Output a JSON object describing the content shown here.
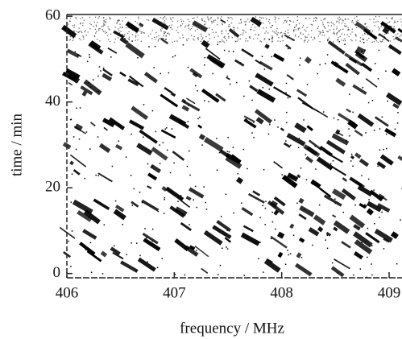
{
  "chart_data": {
    "type": "dynamic-spectrum",
    "xlabel": "frequency / MHz",
    "ylabel": "time / min",
    "xlim": [
      406,
      409.12
    ],
    "ylim": [
      -1,
      60.4
    ],
    "xticks": [
      406,
      407,
      408,
      409
    ],
    "yticks": [
      0,
      20,
      40,
      60
    ],
    "color": "#000000"
  }
}
